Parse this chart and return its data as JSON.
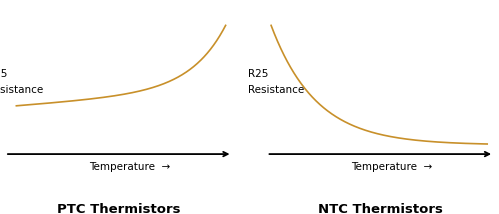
{
  "background_color": "#ffffff",
  "curve_color": "#c8902a",
  "axis_color": "#000000",
  "text_color": "#000000",
  "green_color": "#2e8b3a",
  "ptc_label": "PTC Thermistors",
  "ntc_label": "NTC Thermistors",
  "y_axis_label_line1": "R25",
  "y_axis_label_line2": "Resistance",
  "x_axis_label": "Temperature",
  "label_fontsize": 7.5,
  "title_fontsize": 9.5,
  "axis_label_fontsize": 7.5,
  "curve_lw": 1.2
}
